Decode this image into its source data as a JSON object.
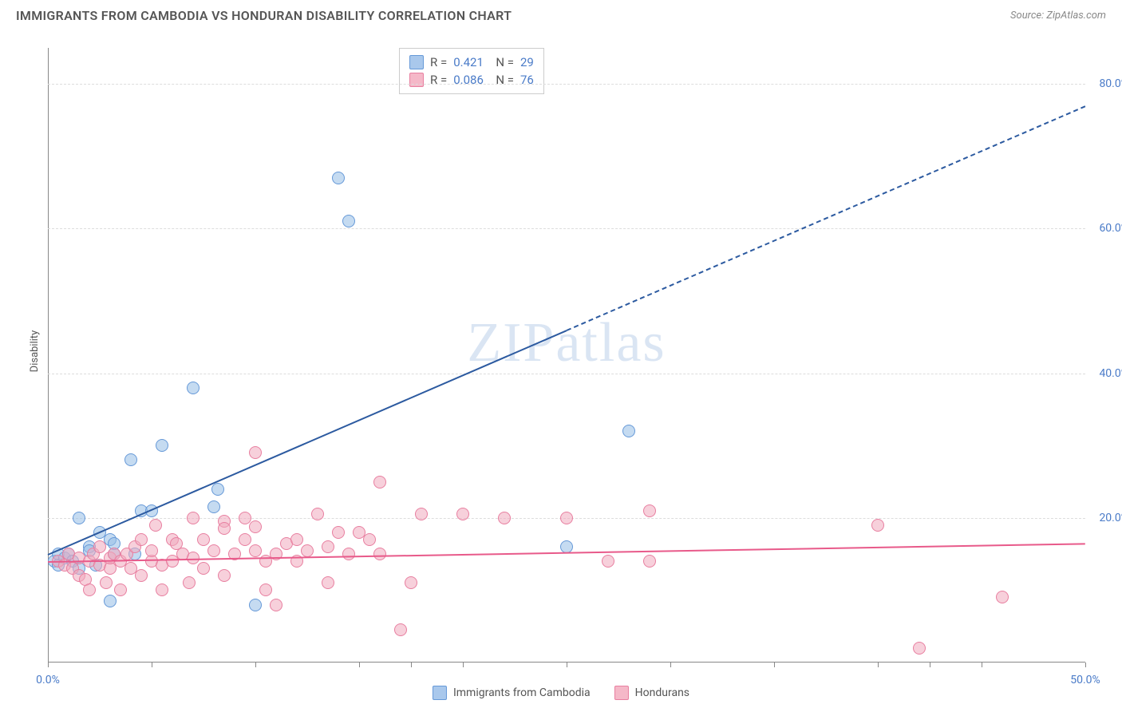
{
  "header": {
    "title": "IMMIGRANTS FROM CAMBODIA VS HONDURAN DISABILITY CORRELATION CHART",
    "source": "Source: ZipAtlas.com"
  },
  "chart": {
    "type": "scatter",
    "ylabel": "Disability",
    "watermark": "ZIPatlas",
    "background_color": "#ffffff",
    "grid_color": "#dddddd",
    "axis_color": "#888888",
    "xlim": [
      0,
      50
    ],
    "ylim": [
      0,
      85
    ],
    "x_ticks": [
      0,
      5,
      10,
      15,
      17.5,
      20,
      25,
      30,
      35,
      40,
      42.5,
      45,
      50
    ],
    "x_tick_labels": [
      {
        "pos": 0,
        "label": "0.0%"
      },
      {
        "pos": 50,
        "label": "50.0%"
      }
    ],
    "y_tick_labels": [
      {
        "pos": 20,
        "label": "20.0%"
      },
      {
        "pos": 40,
        "label": "40.0%"
      },
      {
        "pos": 60,
        "label": "60.0%"
      },
      {
        "pos": 80,
        "label": "80.0%"
      }
    ],
    "y_gridlines": [
      20,
      40,
      60,
      80
    ],
    "legend_top": {
      "rows": [
        {
          "swatch_fill": "#a9c8ec",
          "swatch_border": "#6699d8",
          "r": "0.421",
          "n": "29"
        },
        {
          "swatch_fill": "#f5b8c8",
          "swatch_border": "#e87fa0",
          "r": "0.086",
          "n": "76"
        }
      ]
    },
    "legend_bottom": {
      "items": [
        {
          "swatch_fill": "#a9c8ec",
          "swatch_border": "#6699d8",
          "label": "Immigrants from Cambodia"
        },
        {
          "swatch_fill": "#f5b8c8",
          "swatch_border": "#e87fa0",
          "label": "Hondurans"
        }
      ]
    },
    "series": [
      {
        "name": "cambodia",
        "fill": "rgba(150,190,230,0.55)",
        "stroke": "#6699d8",
        "marker_size": 16,
        "trend": {
          "x1": 0,
          "y1": 15,
          "x2": 25,
          "y2": 46,
          "color": "#2c5aa0",
          "dash_extend_x2": 50,
          "dash_extend_y2": 77
        },
        "points": [
          [
            0.3,
            14
          ],
          [
            0.5,
            15
          ],
          [
            0.5,
            13.5
          ],
          [
            0.8,
            14.5
          ],
          [
            1,
            15
          ],
          [
            1.2,
            14
          ],
          [
            1.5,
            13
          ],
          [
            1.5,
            20
          ],
          [
            2,
            16
          ],
          [
            2,
            15.5
          ],
          [
            2.3,
            13.5
          ],
          [
            2.5,
            18
          ],
          [
            3,
            17
          ],
          [
            3,
            8.5
          ],
          [
            3.2,
            15
          ],
          [
            3.2,
            16.5
          ],
          [
            4,
            28
          ],
          [
            4.2,
            15
          ],
          [
            4.5,
            21
          ],
          [
            5,
            21
          ],
          [
            5.5,
            30
          ],
          [
            7,
            38
          ],
          [
            8,
            21.5
          ],
          [
            8.2,
            24
          ],
          [
            10,
            8
          ],
          [
            14,
            67
          ],
          [
            14.5,
            61
          ],
          [
            25,
            16
          ],
          [
            28,
            32
          ]
        ]
      },
      {
        "name": "hondurans",
        "fill": "rgba(240,170,190,0.55)",
        "stroke": "#e87fa0",
        "marker_size": 16,
        "trend": {
          "x1": 0,
          "y1": 14,
          "x2": 50,
          "y2": 16.5,
          "color": "#e85a8a"
        },
        "points": [
          [
            0.5,
            14
          ],
          [
            0.8,
            13.5
          ],
          [
            1,
            15
          ],
          [
            1.2,
            13
          ],
          [
            1.5,
            12
          ],
          [
            1.5,
            14.5
          ],
          [
            1.8,
            11.5
          ],
          [
            2,
            14
          ],
          [
            2,
            10
          ],
          [
            2.2,
            15
          ],
          [
            2.5,
            13.5
          ],
          [
            2.5,
            16
          ],
          [
            2.8,
            11
          ],
          [
            3,
            13
          ],
          [
            3,
            14.5
          ],
          [
            3.2,
            15
          ],
          [
            3.5,
            10
          ],
          [
            3.5,
            14
          ],
          [
            3.8,
            15
          ],
          [
            4,
            13
          ],
          [
            4.2,
            16
          ],
          [
            4.5,
            12
          ],
          [
            4.5,
            17
          ],
          [
            5,
            14
          ],
          [
            5,
            15.5
          ],
          [
            5.2,
            19
          ],
          [
            5.5,
            10
          ],
          [
            5.5,
            13.5
          ],
          [
            6,
            14
          ],
          [
            6,
            17
          ],
          [
            6.2,
            16.5
          ],
          [
            6.5,
            15
          ],
          [
            6.8,
            11
          ],
          [
            7,
            14.5
          ],
          [
            7,
            20
          ],
          [
            7.5,
            13
          ],
          [
            7.5,
            17
          ],
          [
            8,
            15.5
          ],
          [
            8.5,
            19.5
          ],
          [
            8.5,
            18.5
          ],
          [
            8.5,
            12
          ],
          [
            9,
            15
          ],
          [
            9.5,
            17
          ],
          [
            9.5,
            20
          ],
          [
            10,
            15.5
          ],
          [
            10,
            18.8
          ],
          [
            10,
            29
          ],
          [
            10.5,
            14
          ],
          [
            10.5,
            10
          ],
          [
            11,
            15
          ],
          [
            11,
            8
          ],
          [
            11.5,
            16.5
          ],
          [
            12,
            14
          ],
          [
            12,
            17
          ],
          [
            12.5,
            15.5
          ],
          [
            13,
            20.5
          ],
          [
            13.5,
            16
          ],
          [
            13.5,
            11
          ],
          [
            14,
            18
          ],
          [
            14.5,
            15
          ],
          [
            15,
            18
          ],
          [
            15.5,
            17
          ],
          [
            16,
            25
          ],
          [
            16,
            15
          ],
          [
            17,
            4.5
          ],
          [
            17.5,
            11
          ],
          [
            18,
            20.5
          ],
          [
            20,
            20.5
          ],
          [
            22,
            20
          ],
          [
            25,
            20
          ],
          [
            27,
            14
          ],
          [
            29,
            14
          ],
          [
            29,
            21
          ],
          [
            40,
            19
          ],
          [
            42,
            2
          ],
          [
            46,
            9
          ]
        ]
      }
    ]
  }
}
